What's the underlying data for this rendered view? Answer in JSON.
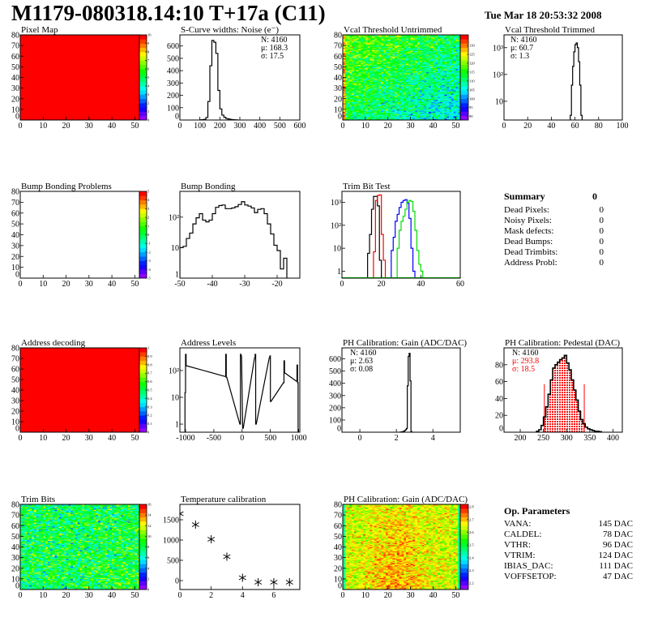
{
  "header": {
    "title": "M1179-080318.14:10 T+17a (C11)",
    "date": "Tue Mar 18 20:53:32 2008"
  },
  "colors": {
    "hist": "#000000",
    "trim_bit_series": [
      "#000000",
      "#ff0000",
      "#0000ff",
      "#00dd00"
    ],
    "pedestal_fill": "#ff0000",
    "pedestal_stats": "#ff0000"
  },
  "panels": {
    "pixel_map": {
      "title": "Pixel Map",
      "type": "heatmap",
      "xlim": [
        0,
        52
      ],
      "ylim": [
        0,
        80
      ],
      "xticks": [
        0,
        10,
        20,
        30,
        40,
        50
      ],
      "yticks": [
        0,
        10,
        20,
        30,
        40,
        50,
        60,
        70,
        80
      ],
      "zlim": [
        0,
        10
      ],
      "zticks": [
        0,
        1,
        2,
        3,
        4,
        5,
        6,
        7,
        8,
        9,
        10
      ],
      "uniform_value": 10
    },
    "scurve": {
      "title": "S-Curve widths: Noise (e⁻)",
      "type": "hist",
      "xlim": [
        0,
        600
      ],
      "ylim": [
        0,
        690
      ],
      "xticks": [
        0,
        100,
        200,
        300,
        400,
        500,
        600
      ],
      "yticks": [
        0,
        100,
        200,
        300,
        400,
        500,
        600
      ],
      "bin_width": 10,
      "bins": [
        [
          100,
          2
        ],
        [
          110,
          3
        ],
        [
          120,
          5
        ],
        [
          130,
          20
        ],
        [
          140,
          150
        ],
        [
          150,
          440
        ],
        [
          160,
          645
        ],
        [
          170,
          630
        ],
        [
          180,
          540
        ],
        [
          190,
          240
        ],
        [
          200,
          90
        ],
        [
          210,
          40
        ],
        [
          220,
          22
        ],
        [
          230,
          12
        ],
        [
          240,
          8
        ],
        [
          250,
          5
        ],
        [
          260,
          3
        ],
        [
          270,
          2
        ],
        [
          280,
          1
        ]
      ],
      "stats": [
        "N: 4160",
        "μ: 168.3",
        "σ: 17.5"
      ]
    },
    "vcal_untrimmed": {
      "title": "Vcal Threshold Untrimmed",
      "type": "heatmap",
      "xlim": [
        0,
        52
      ],
      "ylim": [
        0,
        80
      ],
      "xticks": [
        0,
        10,
        20,
        30,
        40,
        50
      ],
      "yticks": [
        0,
        10,
        20,
        30,
        40,
        50,
        60,
        70,
        80
      ],
      "zlim": [
        88,
        136
      ],
      "zticks": [
        90,
        95,
        100,
        105,
        110,
        115,
        120,
        125,
        130
      ]
    },
    "vcal_trimmed": {
      "title": "Vcal Threshold Trimmed",
      "type": "hist",
      "log": true,
      "xlim": [
        0,
        100
      ],
      "ylim": [
        2,
        3000
      ],
      "xticks": [
        0,
        20,
        40,
        60,
        80,
        100
      ],
      "yticks": [
        10,
        100,
        1000
      ],
      "ytick_labels": [
        "10",
        "10²",
        "10³"
      ],
      "bin_width": 1,
      "bins": [
        [
          56,
          3
        ],
        [
          57,
          40
        ],
        [
          58,
          200
        ],
        [
          59,
          700
        ],
        [
          60,
          1300
        ],
        [
          61,
          1500
        ],
        [
          62,
          1000
        ],
        [
          63,
          300
        ],
        [
          64,
          40
        ],
        [
          65,
          3
        ]
      ],
      "stats": [
        "N: 4160",
        "μ: 60.7",
        "σ:  1.3"
      ]
    },
    "bump_problems": {
      "title": "Bump Bonding Problems",
      "type": "heatmap",
      "xlim": [
        0,
        52
      ],
      "ylim": [
        0,
        80
      ],
      "xticks": [
        0,
        10,
        20,
        30,
        40,
        50
      ],
      "yticks": [
        0,
        10,
        20,
        30,
        40,
        50,
        60,
        70,
        80
      ],
      "zlim": [
        -5,
        5
      ],
      "zticks": [
        -5,
        -4,
        -3,
        -2,
        -1,
        0,
        1,
        2,
        3,
        4,
        5
      ],
      "empty": true
    },
    "bump_bonding": {
      "title": "Bump Bonding",
      "type": "hist",
      "log": true,
      "xlim": [
        -50,
        -13
      ],
      "ylim": [
        1,
        700
      ],
      "xticks": [
        -50,
        -40,
        -30,
        -20
      ],
      "yticks": [
        1,
        10,
        100
      ],
      "ytick_labels": [
        "1",
        "10",
        "10²"
      ],
      "bin_width": 1,
      "bins": [
        [
          -50,
          10
        ],
        [
          -49,
          11
        ],
        [
          -48,
          20
        ],
        [
          -47,
          30
        ],
        [
          -46,
          60
        ],
        [
          -45,
          95
        ],
        [
          -44,
          130
        ],
        [
          -43,
          80
        ],
        [
          -42,
          70
        ],
        [
          -41,
          80
        ],
        [
          -40,
          130
        ],
        [
          -39,
          210
        ],
        [
          -38,
          240
        ],
        [
          -37,
          250
        ],
        [
          -36,
          190
        ],
        [
          -35,
          190
        ],
        [
          -34,
          200
        ],
        [
          -33,
          220
        ],
        [
          -32,
          260
        ],
        [
          -31,
          320
        ],
        [
          -30,
          250
        ],
        [
          -29,
          230
        ],
        [
          -28,
          200
        ],
        [
          -27,
          140
        ],
        [
          -26,
          180
        ],
        [
          -25,
          190
        ],
        [
          -24,
          130
        ],
        [
          -23,
          60
        ],
        [
          -22,
          28
        ],
        [
          -21,
          12
        ],
        [
          -20,
          8
        ],
        [
          -19,
          2
        ],
        [
          -18,
          4.5
        ]
      ]
    },
    "trim_bit_test": {
      "title": "Trim Bit Test",
      "type": "multihist",
      "log": true,
      "xlim": [
        0,
        60
      ],
      "ylim": [
        0.5,
        3000
      ],
      "xticks": [
        0,
        20,
        40,
        60
      ],
      "yticks": [
        1,
        10,
        100,
        1000
      ],
      "ytick_labels": [
        "1",
        "10",
        "10²",
        "10³"
      ],
      "bin_width": 1,
      "series": [
        {
          "bins": [
            [
              13,
              6
            ],
            [
              14,
              40
            ],
            [
              15,
              500
            ],
            [
              16,
              1800
            ],
            [
              17,
              1800
            ],
            [
              18,
              700
            ],
            [
              19,
              3
            ]
          ]
        },
        {
          "bins": [
            [
              16,
              7
            ],
            [
              17,
              1200
            ],
            [
              18,
              2000
            ],
            [
              19,
              2100
            ],
            [
              20,
              40
            ],
            [
              21,
              3
            ]
          ]
        },
        {
          "bins": [
            [
              25,
              8
            ],
            [
              26,
              30
            ],
            [
              27,
              150
            ],
            [
              28,
              300
            ],
            [
              29,
              600
            ],
            [
              30,
              1000
            ],
            [
              31,
              1200
            ],
            [
              32,
              1300
            ],
            [
              33,
              900
            ],
            [
              34,
              200
            ],
            [
              35,
              10
            ],
            [
              36,
              1
            ]
          ]
        },
        {
          "bins": [
            [
              28,
              10
            ],
            [
              29,
              60
            ],
            [
              30,
              150
            ],
            [
              31,
              250
            ],
            [
              32,
              500
            ],
            [
              33,
              1000
            ],
            [
              34,
              1200
            ],
            [
              35,
              1100
            ],
            [
              36,
              400
            ],
            [
              37,
              60
            ],
            [
              38,
              8
            ],
            [
              39,
              2
            ],
            [
              40,
              1
            ]
          ]
        }
      ]
    },
    "address_decoding": {
      "title": "Address decoding",
      "type": "heatmap",
      "xlim": [
        0,
        52
      ],
      "ylim": [
        0,
        80
      ],
      "xticks": [
        0,
        10,
        20,
        30,
        40,
        50
      ],
      "yticks": [
        0,
        10,
        20,
        30,
        40,
        50,
        60,
        70,
        80
      ],
      "zlim": [
        0,
        1
      ],
      "zticks": [
        0,
        0.1,
        0.2,
        0.3,
        0.4,
        0.5,
        0.6,
        0.7,
        0.8,
        0.9,
        1
      ],
      "uniform_value": 1
    },
    "address_levels": {
      "title": "Address Levels",
      "type": "hist",
      "log": true,
      "xlim": [
        -1100,
        1020
      ],
      "ylim": [
        0.5,
        700
      ],
      "xticks": [
        -1000,
        -500,
        0,
        500,
        1000
      ],
      "yticks": [
        1,
        10,
        100
      ],
      "ytick_labels": [
        "1",
        "10",
        "10²"
      ],
      "bin_width": 10,
      "bins": [
        [
          -1010,
          15
        ],
        [
          -1000,
          400
        ],
        [
          -990,
          150
        ],
        [
          -300,
          60
        ],
        [
          -290,
          400
        ],
        [
          -280,
          55
        ],
        [
          -40,
          1
        ],
        [
          -30,
          400
        ],
        [
          -20,
          350
        ],
        [
          10,
          0.7
        ],
        [
          220,
          300
        ],
        [
          230,
          400
        ],
        [
          240,
          1
        ],
        [
          480,
          300
        ],
        [
          490,
          350
        ],
        [
          500,
          7
        ],
        [
          730,
          35
        ],
        [
          740,
          230
        ],
        [
          750,
          80
        ],
        [
          960,
          40
        ],
        [
          970,
          160
        ],
        [
          980,
          35
        ]
      ]
    },
    "ph_gain_hist": {
      "title": "PH Calibration: Gain (ADC/DAC)",
      "type": "hist",
      "xlim": [
        -0.98,
        5.5
      ],
      "ylim": [
        0,
        690
      ],
      "xticks": [
        0,
        2,
        4
      ],
      "yticks": [
        0,
        100,
        200,
        300,
        400,
        500,
        600
      ],
      "bin_width": 0.05,
      "bins": [
        [
          2.2,
          1
        ],
        [
          2.25,
          2
        ],
        [
          2.3,
          3
        ],
        [
          2.35,
          6
        ],
        [
          2.4,
          8
        ],
        [
          2.45,
          14
        ],
        [
          2.5,
          20
        ],
        [
          2.55,
          30
        ],
        [
          2.6,
          380
        ],
        [
          2.65,
          620
        ],
        [
          2.7,
          645
        ],
        [
          2.75,
          420
        ],
        [
          2.8,
          5
        ]
      ],
      "stats": [
        "N: 4160",
        "μ: 2.63",
        "σ: 0.08"
      ]
    },
    "ph_pedestal": {
      "title": "PH Calibration: Pedestal (DAC)",
      "type": "hist",
      "xlim": [
        165,
        420
      ],
      "ylim": [
        0,
        100
      ],
      "xticks": [
        200,
        250,
        300,
        350,
        400
      ],
      "yticks": [
        0,
        20,
        40,
        60,
        80
      ],
      "bin_width": 5,
      "fill_range": [
        252,
        338
      ],
      "bins": [
        [
          235,
          1
        ],
        [
          240,
          3
        ],
        [
          245,
          8
        ],
        [
          250,
          18
        ],
        [
          255,
          30
        ],
        [
          260,
          45
        ],
        [
          265,
          62
        ],
        [
          270,
          76
        ],
        [
          275,
          80
        ],
        [
          280,
          83
        ],
        [
          285,
          86
        ],
        [
          290,
          88
        ],
        [
          295,
          91
        ],
        [
          300,
          82
        ],
        [
          305,
          74
        ],
        [
          310,
          62
        ],
        [
          315,
          50
        ],
        [
          320,
          38
        ],
        [
          325,
          25
        ],
        [
          330,
          15
        ],
        [
          335,
          10
        ],
        [
          340,
          6
        ],
        [
          345,
          4
        ],
        [
          350,
          3
        ],
        [
          355,
          2
        ],
        [
          360,
          1
        ],
        [
          365,
          1
        ],
        [
          370,
          0.5
        ]
      ],
      "stats": [
        "N: 4160",
        "μ: 293.8",
        "σ: 18.5"
      ]
    },
    "trim_bits": {
      "title": "Trim Bits",
      "type": "heatmap",
      "xlim": [
        0,
        52
      ],
      "ylim": [
        0,
        80
      ],
      "xticks": [
        0,
        10,
        20,
        30,
        40,
        50
      ],
      "yticks": [
        0,
        10,
        20,
        30,
        40,
        50,
        60,
        70,
        80
      ],
      "zlim": [
        0,
        16
      ],
      "zticks": [
        0,
        2,
        4,
        6,
        8,
        10,
        12,
        14,
        16
      ]
    },
    "temperature": {
      "title": "Temperature calibration",
      "type": "scatter",
      "xlim": [
        0,
        7.66
      ],
      "ylim": [
        -220,
        1880
      ],
      "xticks": [
        0,
        2,
        4,
        6
      ],
      "yticks": [
        0,
        500,
        1000,
        1500
      ],
      "points": [
        [
          0,
          1650
        ],
        [
          1,
          1380
        ],
        [
          2,
          1020
        ],
        [
          3,
          590
        ],
        [
          4,
          70
        ],
        [
          5,
          -40
        ],
        [
          6,
          -40
        ],
        [
          7,
          -40
        ]
      ]
    },
    "ph_gain_map": {
      "title": "PH Calibration: Gain (ADC/DAC)",
      "type": "heatmap",
      "xlim": [
        0,
        52
      ],
      "ylim": [
        0,
        80
      ],
      "xticks": [
        0,
        10,
        20,
        30,
        40,
        50
      ],
      "yticks": [
        0,
        10,
        20,
        30,
        40,
        50,
        60,
        70,
        80
      ],
      "zlim": [
        2.15,
        2.82
      ],
      "zticks": [
        2.2,
        2.3,
        2.4,
        2.5,
        2.6,
        2.7,
        2.8
      ]
    }
  },
  "summary": {
    "title": "Summary",
    "total": "0",
    "rows": [
      {
        "label": "Dead Pixels:",
        "value": "0"
      },
      {
        "label": "Noisy Pixels:",
        "value": "0"
      },
      {
        "label": "Mask defects:",
        "value": "0"
      },
      {
        "label": "Dead Bumps:",
        "value": "0"
      },
      {
        "label": "Dead Trimbits:",
        "value": "0"
      },
      {
        "label": "Address Probl:",
        "value": "0"
      }
    ]
  },
  "op_parameters": {
    "title": "Op. Parameters",
    "rows": [
      {
        "label": "VANA:",
        "value": "145 DAC"
      },
      {
        "label": "CALDEL:",
        "value": "78 DAC"
      },
      {
        "label": "VTHR:",
        "value": "96 DAC"
      },
      {
        "label": "VTRIM:",
        "value": "124 DAC"
      },
      {
        "label": "IBIAS_DAC:",
        "value": "111 DAC"
      },
      {
        "label": "VOFFSETOP:",
        "value": "47 DAC"
      }
    ]
  }
}
